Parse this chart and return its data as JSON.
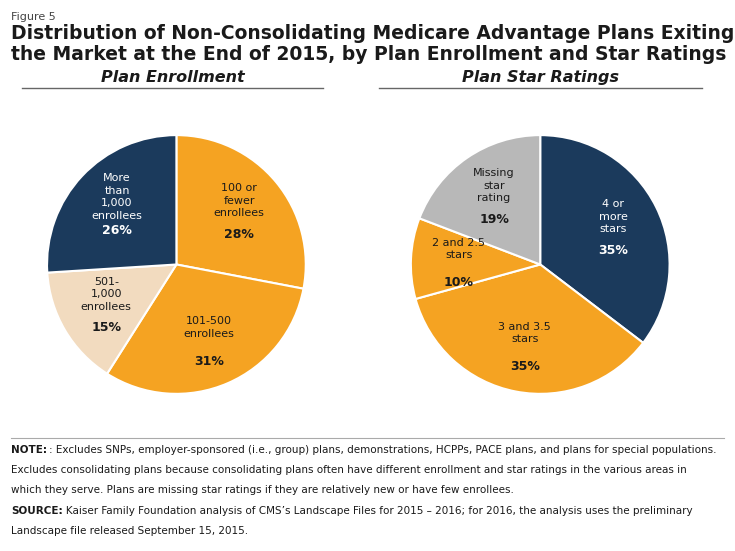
{
  "figure_label": "Figure 5",
  "title_line1": "Distribution of Non-Consolidating Medicare Advantage Plans Exiting",
  "title_line2": "the Market at the End of 2015, by Plan Enrollment and Star Ratings",
  "pie1_title": "Plan Enrollment",
  "pie2_title": "Plan Star Ratings",
  "pie1_values": [
    28,
    31,
    15,
    26
  ],
  "pie1_pcts": [
    "28%",
    "31%",
    "15%",
    "26%"
  ],
  "pie1_colors": [
    "#F5A322",
    "#F5A322",
    "#F2DBBF",
    "#1B3A5C"
  ],
  "pie2_values": [
    35,
    35,
    10,
    19
  ],
  "pie2_pcts": [
    "35%",
    "35%",
    "10%",
    "19%"
  ],
  "pie2_colors": [
    "#1B3A5C",
    "#F5A322",
    "#F5A322",
    "#B8B8B8"
  ],
  "note_bold1": "NOTE",
  "note_text1": ": Excludes SNPs, employer-sponsored (i.e., group) plans, demonstrations, HCPPs, PACE plans, and plans for special populations.",
  "note_text2": "Excludes consolidating plans because consolidating plans often have different enrollment and star ratings in the various areas in",
  "note_text3": "which they serve. Plans are missing star ratings if they are relatively new or have few enrollees.",
  "note_bold2": "SOURCE",
  "note_text4": ": Kaiser Family Foundation analysis of CMS’s Landscape Files for 2015 – 2016; for 2016, the analysis uses the preliminary",
  "note_text5": "Landscape file released September 15, 2015.",
  "bg_color": "#FFFFFF",
  "title_color": "#1A1A1A",
  "orange_color": "#F5A322",
  "dark_blue": "#1B3A5C",
  "light_peach": "#F2DBBF",
  "gray_color": "#B8B8B8",
  "pie1_label_texts": [
    "100 or\nfewer\nenrollees",
    "101-500\nenrollees",
    "501-\n1,000\nenrollees",
    "More\nthan\n1,000\nenrollees"
  ],
  "pie1_label_colors": [
    "#1A1A1A",
    "#1A1A1A",
    "#1A1A1A",
    "#FFFFFF"
  ],
  "pie2_label_texts": [
    "4 or\nmore\nstars",
    "3 and 3.5\nstars",
    "2 and 2.5\nstars",
    "Missing\nstar\nrating"
  ],
  "pie2_label_colors": [
    "#FFFFFF",
    "#1A1A1A",
    "#1A1A1A",
    "#1A1A1A"
  ]
}
